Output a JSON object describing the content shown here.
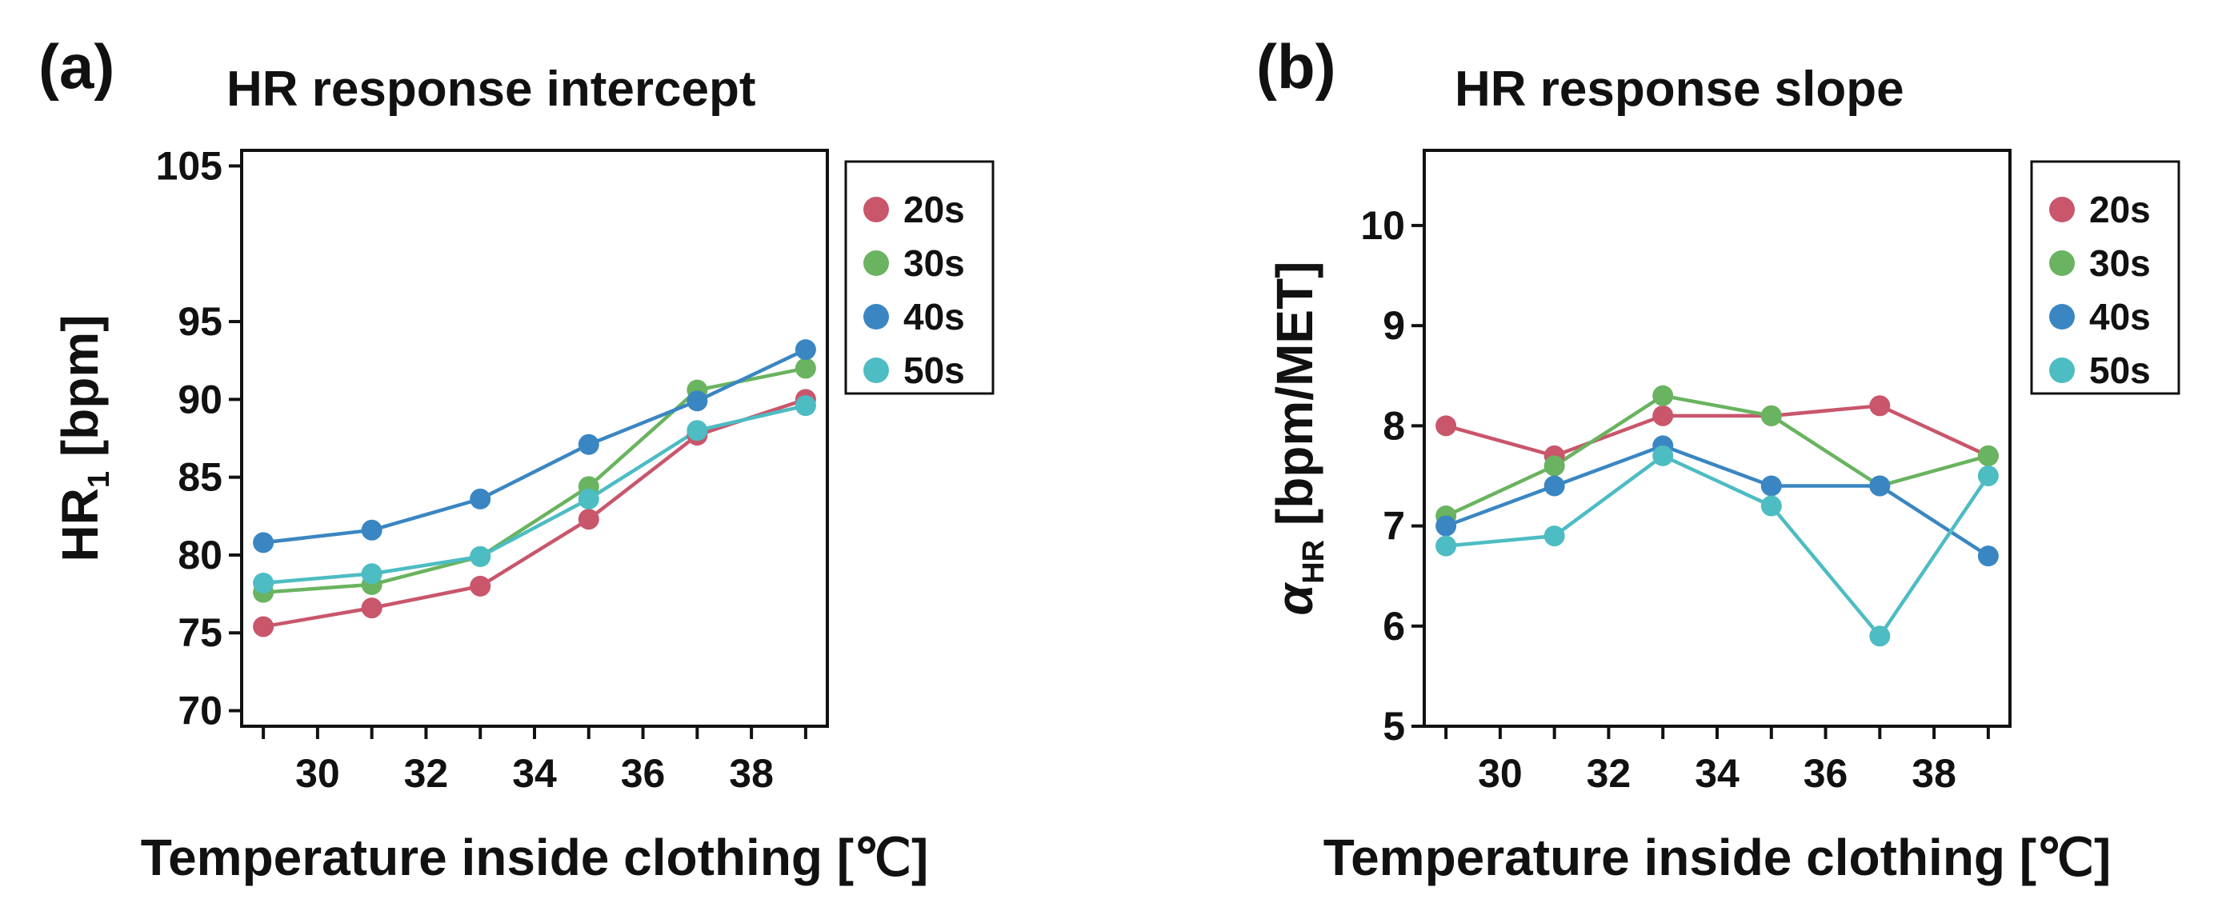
{
  "chart_data": [
    {
      "type": "line",
      "panel_label": "(a)",
      "title": "HR response intercept",
      "xlabel": "Temperature inside clothing [℃]",
      "ylabel_main": "HR",
      "ylabel_sub": "1",
      "ylabel_unit": " [bpm]",
      "x": [
        29,
        31,
        33,
        35,
        37,
        39
      ],
      "xlim": [
        28.6,
        39.4
      ],
      "xticks": [
        30,
        32,
        34,
        36,
        38
      ],
      "ylim": [
        69,
        106
      ],
      "yticks": [
        70,
        75,
        80,
        85,
        90,
        95,
        105
      ],
      "legend_position": "top-right",
      "series": [
        {
          "name": "20s",
          "color": "#c9566b",
          "values": [
            75.4,
            76.6,
            78.0,
            82.3,
            87.7,
            90.0
          ]
        },
        {
          "name": "30s",
          "color": "#6ab360",
          "values": [
            77.6,
            78.1,
            79.9,
            84.4,
            90.6,
            92.0
          ]
        },
        {
          "name": "40s",
          "color": "#3a86c2",
          "values": [
            80.8,
            81.6,
            83.6,
            87.1,
            89.9,
            93.2
          ]
        },
        {
          "name": "50s",
          "color": "#4dbcc3",
          "values": [
            78.2,
            78.8,
            79.9,
            83.6,
            88.0,
            89.6
          ]
        }
      ]
    },
    {
      "type": "line",
      "panel_label": "(b)",
      "title": "HR response slope",
      "xlabel": "Temperature inside clothing [℃]",
      "ylabel_main": "α",
      "ylabel_sub": "HR",
      "ylabel_unit": " [bpm/MET]",
      "x": [
        29,
        31,
        33,
        35,
        37,
        39
      ],
      "xlim": [
        28.6,
        39.4
      ],
      "xticks": [
        30,
        32,
        34,
        36,
        38
      ],
      "ylim": [
        5,
        10.75
      ],
      "yticks": [
        5,
        6,
        7,
        8,
        9,
        10
      ],
      "legend_position": "top-right",
      "series": [
        {
          "name": "20s",
          "color": "#c9566b",
          "values": [
            8.0,
            7.7,
            8.1,
            8.1,
            8.2,
            7.7
          ]
        },
        {
          "name": "30s",
          "color": "#6ab360",
          "values": [
            7.1,
            7.6,
            8.3,
            8.1,
            7.4,
            7.7
          ]
        },
        {
          "name": "40s",
          "color": "#3a86c2",
          "values": [
            7.0,
            7.4,
            7.8,
            7.4,
            7.4,
            6.7
          ]
        },
        {
          "name": "50s",
          "color": "#4dbcc3",
          "values": [
            6.8,
            6.9,
            7.7,
            7.2,
            5.9,
            7.5
          ]
        }
      ]
    }
  ]
}
